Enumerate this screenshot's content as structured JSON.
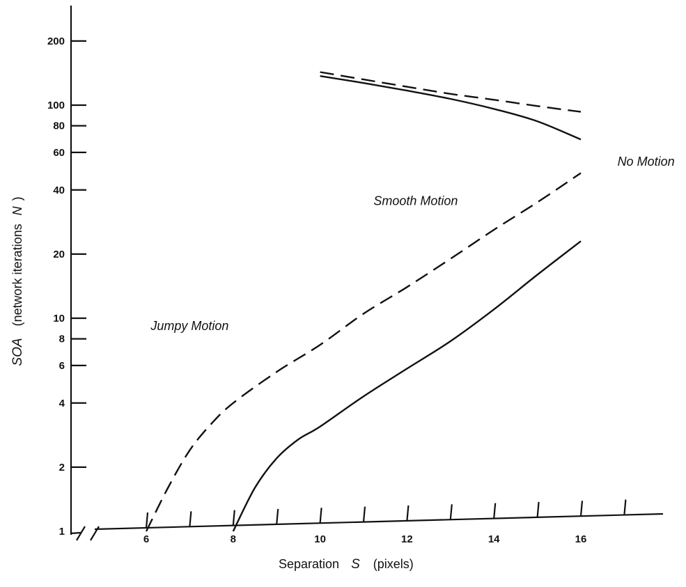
{
  "chart_data": {
    "type": "line",
    "title": "",
    "x_axis": {
      "label_text": "Separation",
      "label_symbol": "S",
      "label_unit": "(pixels)",
      "range": [
        4.6,
        18
      ],
      "scale": "linear",
      "tick_values": [
        6,
        7,
        8,
        9,
        10,
        11,
        12,
        13,
        14,
        15,
        16,
        17
      ],
      "tick_labels": [
        "6",
        "8",
        "10",
        "12",
        "14",
        "16"
      ],
      "tick_label_values": [
        6,
        8,
        10,
        12,
        14,
        16
      ],
      "axis_break": true
    },
    "y_axis": {
      "label_symbol": "SOA",
      "label_text": "(network iterations",
      "label_symbol2": "N",
      "label_close": ")",
      "range": [
        1,
        300
      ],
      "scale": "log",
      "tick_values": [
        1,
        2,
        4,
        6,
        8,
        10,
        20,
        40,
        60,
        80,
        100,
        200
      ],
      "tick_labels": [
        "1",
        "2",
        "4",
        "6",
        "8",
        "10",
        "20",
        "40",
        "60",
        "80",
        "100",
        "200"
      ]
    },
    "grid": false,
    "legend": "none",
    "series": [
      {
        "style": "dashed",
        "group": "lower-boundary",
        "x": [
          6,
          6.5,
          7,
          7.5,
          8,
          9,
          10,
          11,
          12,
          13,
          14,
          15,
          16
        ],
        "y": [
          1.0,
          1.6,
          2.4,
          3.2,
          4.0,
          5.6,
          7.5,
          10.5,
          14,
          19,
          26,
          35,
          48
        ]
      },
      {
        "style": "solid",
        "group": "lower-boundary",
        "x": [
          8,
          8.5,
          9,
          9.5,
          10,
          11,
          12,
          13,
          14,
          15,
          16
        ],
        "y": [
          1.0,
          1.6,
          2.2,
          2.7,
          3.1,
          4.3,
          5.8,
          7.8,
          11,
          16,
          23
        ]
      },
      {
        "style": "dashed",
        "group": "upper-boundary",
        "x": [
          10,
          11,
          12,
          13,
          14,
          15,
          16
        ],
        "y": [
          143,
          132,
          122,
          113,
          106,
          99,
          93
        ]
      },
      {
        "style": "solid",
        "group": "upper-boundary",
        "x": [
          10,
          11,
          12,
          13,
          14,
          15,
          16
        ],
        "y": [
          137,
          127,
          117,
          107,
          96,
          84,
          69
        ]
      }
    ],
    "annotations": [
      {
        "text": "Jumpy Motion",
        "x": 7.0,
        "y": 8.8
      },
      {
        "text": "Smooth Motion",
        "x": 12.2,
        "y": 34
      },
      {
        "text": "No Motion",
        "x": 17.5,
        "y": 52
      }
    ]
  }
}
